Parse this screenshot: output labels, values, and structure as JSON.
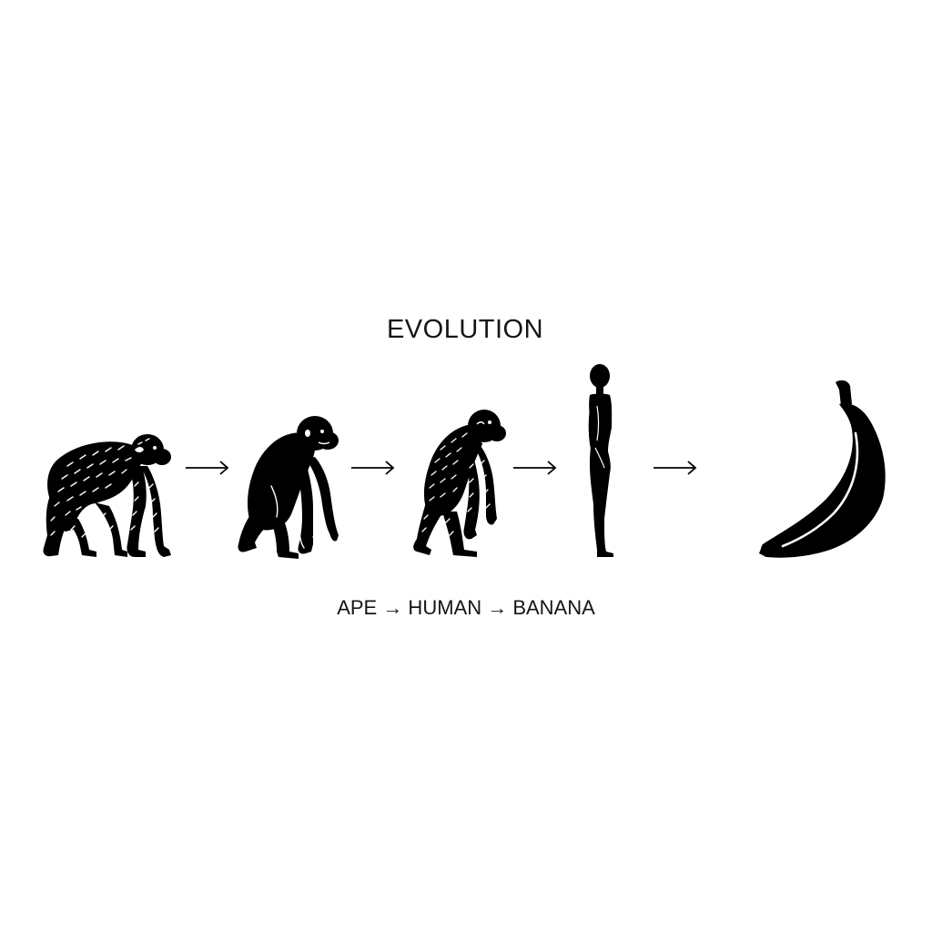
{
  "title": "EVOLUTION",
  "caption": "APE → HUMAN → BANANA",
  "stages": [
    {
      "name": "ape",
      "icon": "hairy-ape-crouching-icon"
    },
    {
      "name": "ape",
      "icon": "smooth-ape-crouching-icon"
    },
    {
      "name": "hominid",
      "icon": "hairy-hominid-stooped-icon"
    },
    {
      "name": "human",
      "icon": "human-standing-icon"
    },
    {
      "name": "banana",
      "icon": "banana-icon"
    }
  ],
  "colors": {
    "background": "#ffffff",
    "ink": "#000000"
  }
}
